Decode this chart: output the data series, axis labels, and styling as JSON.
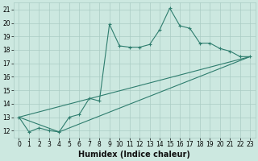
{
  "title": "",
  "xlabel": "Humidex (Indice chaleur)",
  "bg_color": "#cce8e0",
  "grid_color": "#aaccc4",
  "line_color": "#2e7d6e",
  "xlim": [
    -0.5,
    23.5
  ],
  "ylim": [
    11.5,
    21.5
  ],
  "xticks": [
    0,
    1,
    2,
    3,
    4,
    5,
    6,
    7,
    8,
    9,
    10,
    11,
    12,
    13,
    14,
    15,
    16,
    17,
    18,
    19,
    20,
    21,
    22,
    23
  ],
  "yticks": [
    12,
    13,
    14,
    15,
    16,
    17,
    18,
    19,
    20,
    21
  ],
  "lines": [
    {
      "x": [
        0,
        1,
        2,
        3,
        4,
        5,
        6,
        7,
        8,
        9,
        10,
        11,
        12,
        13,
        14,
        15,
        16,
        17,
        18,
        19,
        20,
        21,
        22,
        23
      ],
      "y": [
        13,
        11.9,
        12.2,
        12.0,
        11.9,
        13.0,
        13.2,
        14.4,
        14.2,
        19.9,
        18.3,
        18.2,
        18.2,
        18.4,
        19.5,
        21.1,
        19.8,
        19.6,
        18.5,
        18.5,
        18.1,
        17.9,
        17.5,
        17.5
      ],
      "marker": true
    },
    {
      "x": [
        0,
        4,
        23
      ],
      "y": [
        13,
        11.9,
        17.5
      ],
      "marker": false
    },
    {
      "x": [
        0,
        23
      ],
      "y": [
        13,
        17.5
      ],
      "marker": false
    }
  ],
  "xlabel_fontsize": 7,
  "tick_fontsize": 5.5
}
